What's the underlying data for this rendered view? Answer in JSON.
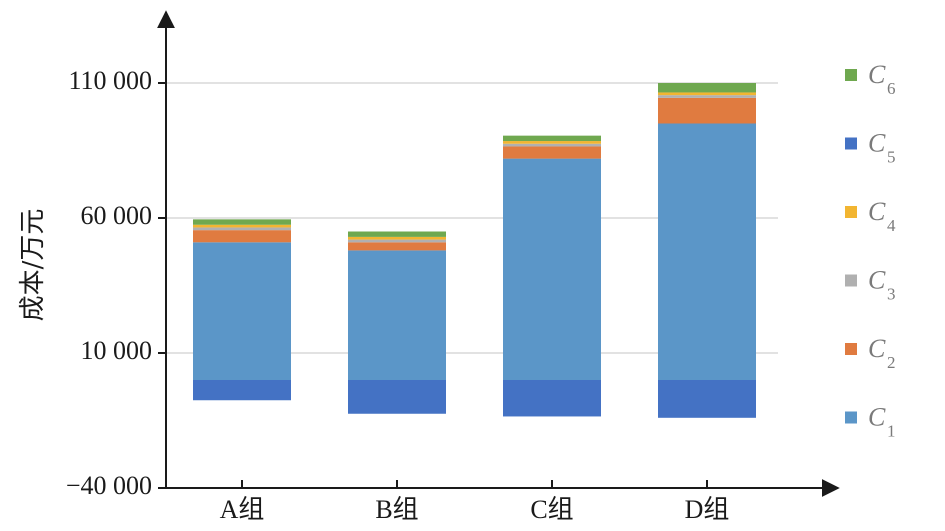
{
  "chart_data": {
    "type": "bar",
    "stacked": true,
    "ylabel": "成本/万元",
    "ylim": [
      -40000,
      130000
    ],
    "yticks": [
      -40000,
      10000,
      60000,
      110000
    ],
    "ytick_labels": [
      "−40 000",
      "10 000",
      "60 000",
      "110 000"
    ],
    "grid": true,
    "legend_position": "right",
    "categories": [
      "A组",
      "B组",
      "C组",
      "D组"
    ],
    "series": [
      {
        "name": "C",
        "sub": "1",
        "color": "#5b96c8",
        "values": [
          51000,
          48000,
          82000,
          95000
        ]
      },
      {
        "name": "C",
        "sub": "2",
        "color": "#e07b40",
        "values": [
          4500,
          3000,
          4500,
          9500
        ]
      },
      {
        "name": "C",
        "sub": "3",
        "color": "#b0b0b0",
        "values": [
          1000,
          1000,
          1000,
          1000
        ]
      },
      {
        "name": "C",
        "sub": "4",
        "color": "#f2b531",
        "values": [
          1000,
          1000,
          1000,
          1000
        ]
      },
      {
        "name": "C",
        "sub": "5",
        "color": "#4472c4",
        "values": [
          -7500,
          -12500,
          -13500,
          -14000
        ]
      },
      {
        "name": "C",
        "sub": "6",
        "color": "#6fa84f",
        "values": [
          2000,
          2000,
          2000,
          3500
        ]
      }
    ]
  }
}
